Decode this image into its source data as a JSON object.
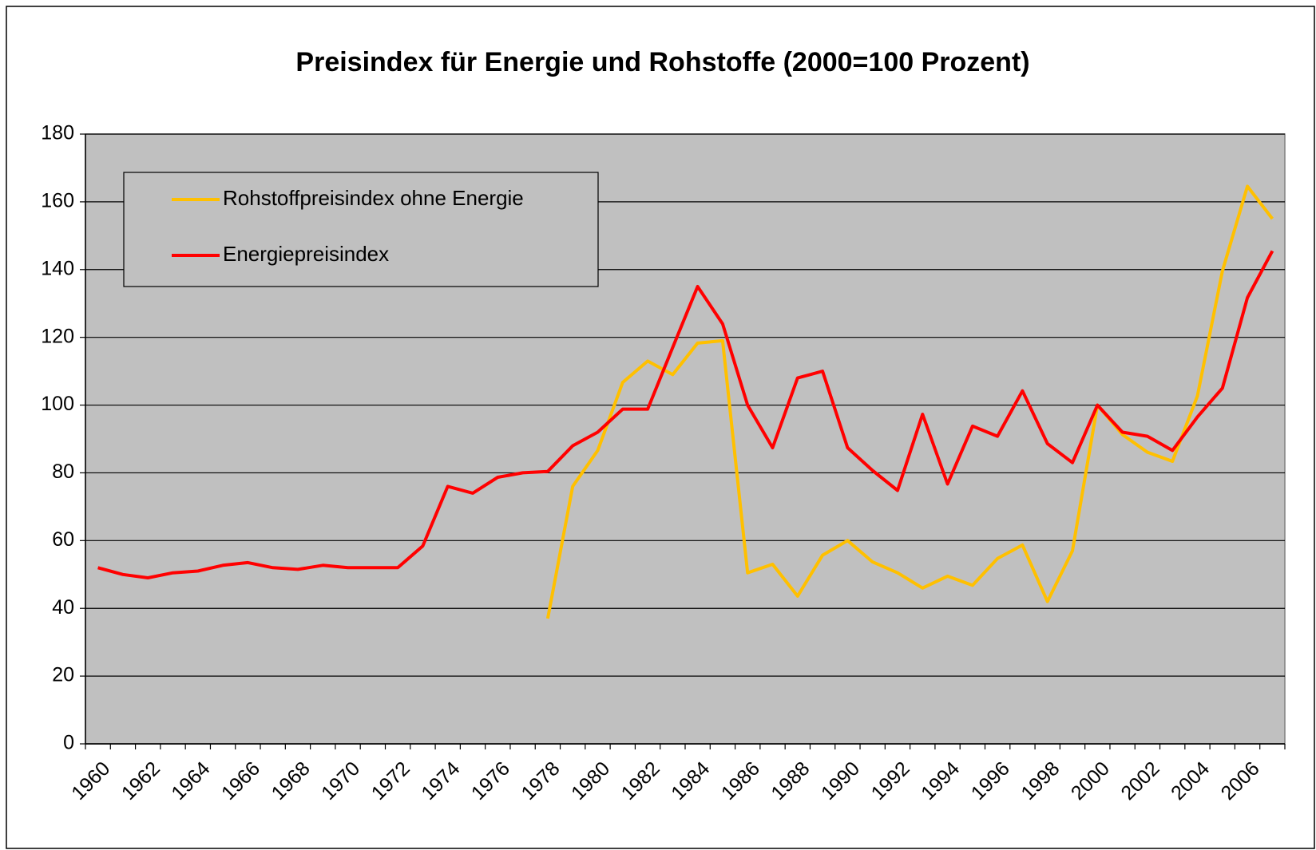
{
  "chart_data": {
    "type": "line",
    "title": "Preisindex für Energie und Rohstoffe (2000=100 Prozent)",
    "categories": [
      "1960",
      null,
      "1962",
      null,
      "1964",
      null,
      "1966",
      null,
      "1968",
      null,
      "1970",
      null,
      "1972",
      null,
      "1974",
      null,
      "1976",
      null,
      "1978",
      null,
      "1980",
      null,
      "1982",
      null,
      "1984",
      null,
      "1986",
      null,
      "1988",
      null,
      "1990",
      null,
      "1992",
      null,
      "1994",
      null,
      "1996",
      null,
      "1998",
      null,
      "2000",
      null,
      "2002",
      null,
      "2004",
      null,
      "2006",
      null
    ],
    "series": [
      {
        "name": "Rohstoffpreisindex ohne Energie",
        "color": "#ffc000",
        "values": [
          null,
          null,
          null,
          null,
          null,
          null,
          null,
          null,
          null,
          null,
          null,
          null,
          null,
          null,
          null,
          null,
          null,
          null,
          37,
          76,
          86.6,
          106.7,
          113,
          109,
          118.3,
          119,
          50.5,
          53,
          43.6,
          55.7,
          60,
          53.7,
          50.5,
          46,
          49.5,
          46.8,
          54.7,
          58.7,
          42,
          57,
          100,
          91.3,
          86.1,
          83.4,
          102.7,
          139.6,
          164.6,
          155
        ]
      },
      {
        "name": "Energiepreisindex",
        "color": "#ff0000",
        "values": [
          52,
          50,
          49,
          50.5,
          51,
          52.7,
          53.5,
          52,
          51.5,
          52.7,
          52,
          52,
          52,
          58.4,
          76,
          74,
          78.7,
          80,
          80.4,
          88,
          92,
          98.8,
          98.8,
          117,
          135,
          124,
          100,
          87.4,
          108,
          110,
          87.4,
          80.7,
          74.8,
          97.3,
          76.7,
          93.8,
          90.8,
          104.2,
          88.6,
          83,
          100,
          92,
          90.8,
          86.6,
          96.5,
          105,
          131.7,
          145.5
        ]
      }
    ],
    "ylim": [
      0,
      180
    ],
    "yticks": [
      0,
      20,
      40,
      60,
      80,
      100,
      120,
      140,
      160,
      180
    ],
    "grid": true,
    "legend": "top-left",
    "plot_background": "#c0c0c0"
  }
}
